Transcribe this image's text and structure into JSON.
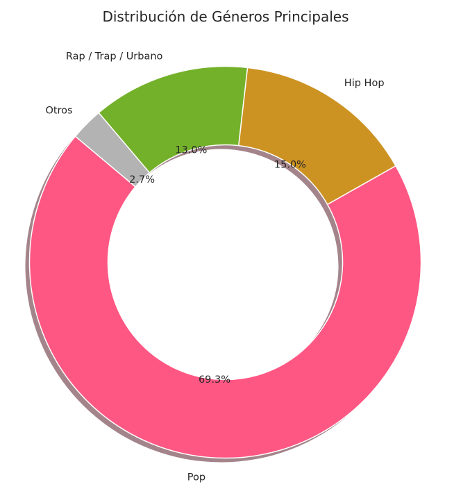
{
  "chart_data": {
    "type": "pie",
    "variant": "donut",
    "title": "Distribución de Géneros Principales",
    "categories": [
      "Pop",
      "Hip Hop",
      "Rap / Trap / Urbano",
      "Otros"
    ],
    "values": [
      69.3,
      15.0,
      13.0,
      2.7
    ],
    "value_labels": [
      "69.3%",
      "15.0%",
      "13.0%",
      "2.7%"
    ],
    "colors": [
      "#ff5783",
      "#cd9322",
      "#74b12b",
      "#b3b3b3"
    ],
    "start_angle_deg": 140,
    "direction": "counterclockwise",
    "shadow": true,
    "legend": "none"
  }
}
